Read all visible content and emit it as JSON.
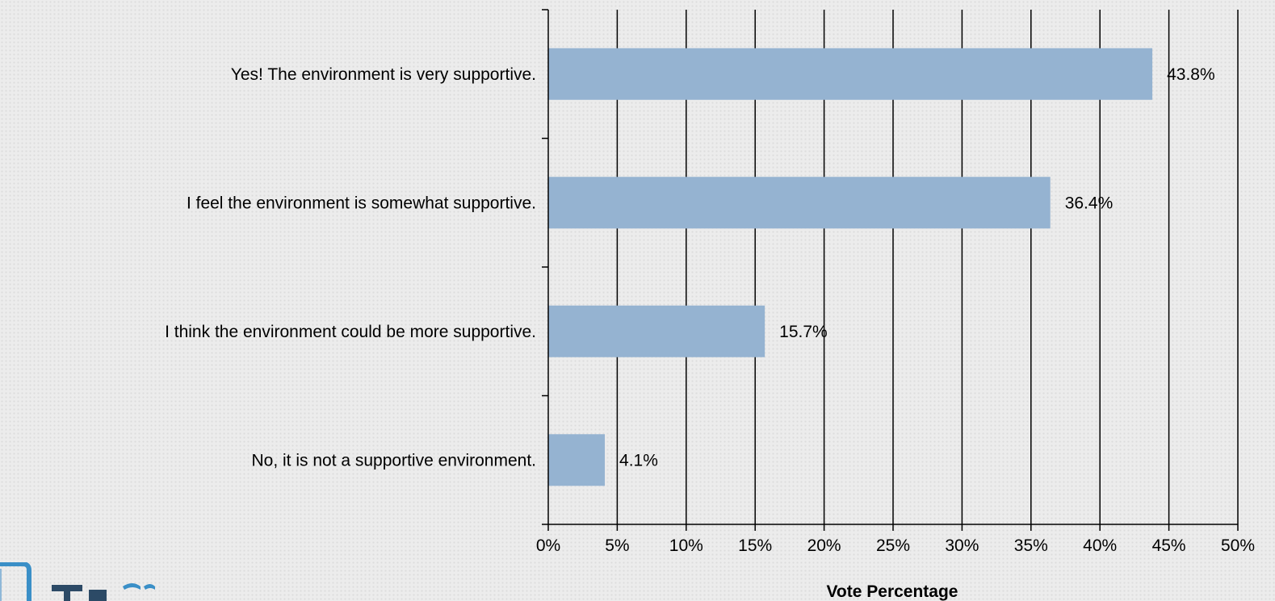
{
  "chart_data": {
    "type": "bar",
    "orientation": "horizontal",
    "categories": [
      "Yes! The environment is very supportive.",
      "I feel the environment is somewhat supportive.",
      "I think the environment could be more supportive.",
      "No, it is not a supportive environment."
    ],
    "values": [
      43.8,
      36.4,
      15.7,
      4.1
    ],
    "data_labels": [
      "43.8%",
      "36.4%",
      "15.7%",
      "4.1%"
    ],
    "xlabel": "Vote Percentage",
    "ylabel": "",
    "xlim": [
      0,
      50
    ],
    "x_ticks": [
      0,
      5,
      10,
      15,
      20,
      25,
      30,
      35,
      40,
      45,
      50
    ],
    "x_tick_labels": [
      "0%",
      "5%",
      "10%",
      "15%",
      "20%",
      "25%",
      "30%",
      "35%",
      "40%",
      "45%",
      "50%"
    ],
    "grid": true,
    "legend": "none",
    "bar_color": "#95b3d1"
  }
}
